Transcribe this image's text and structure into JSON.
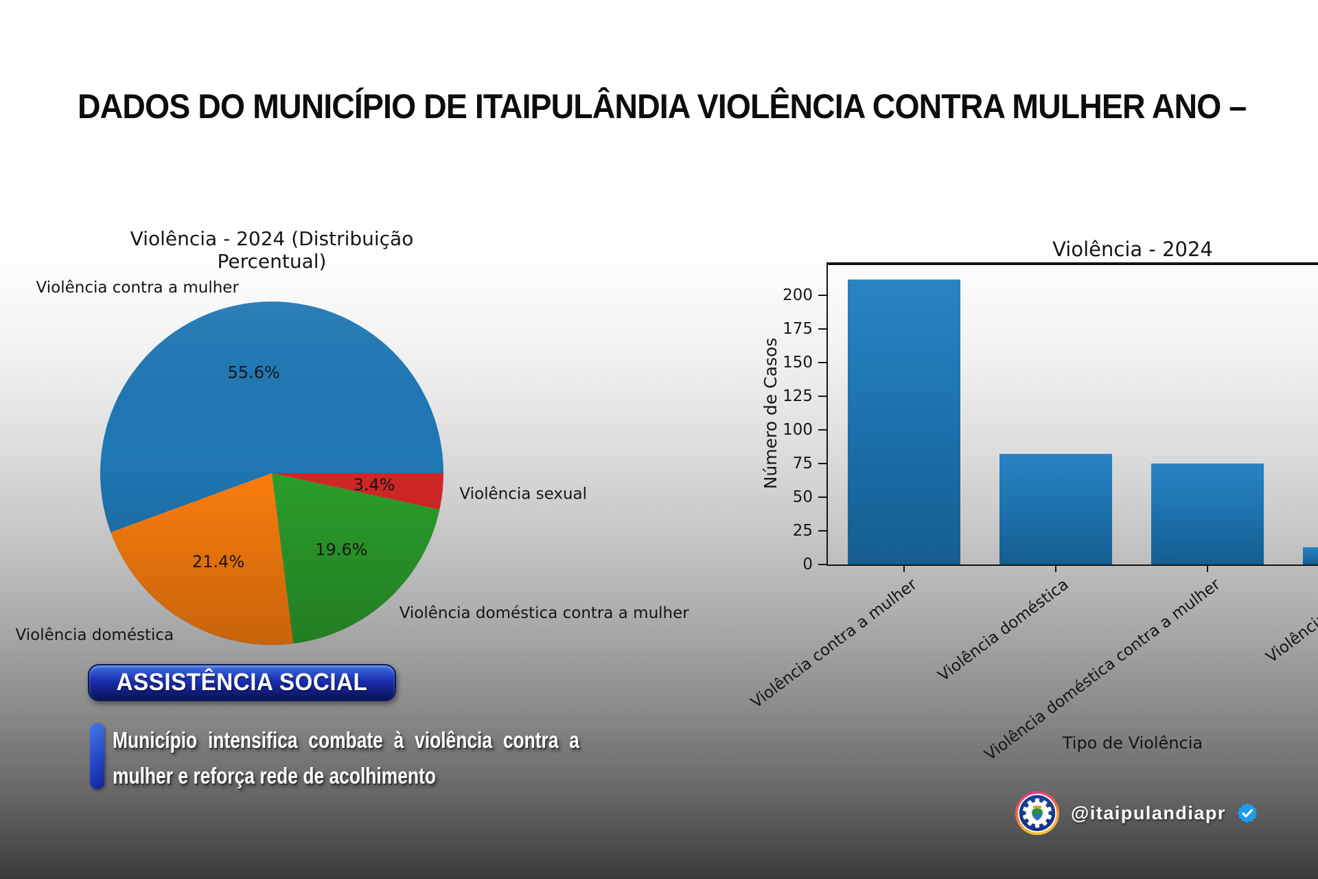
{
  "header": {
    "title": "DADOS DO MUNICÍPIO DE ITAIPULÂNDIA VIOLÊNCIA CONTRA MULHER ANO –"
  },
  "badge": {
    "label": "ASSISTÊNCIA SOCIAL"
  },
  "headline": {
    "line1": "Município intensifica combate à violência contra a",
    "line2": "mulher e reforça rede de acolhimento"
  },
  "social": {
    "handle": "@itaipulandiapr",
    "logo_icon": "itaipulandia-municipal-crest-logo",
    "verified_icon": "verified-check-badge"
  },
  "colors": {
    "verified_blue": "#1d9bf0",
    "badge_blue": "#1b2fae",
    "chart_text": "#161616"
  },
  "chart_data": [
    {
      "type": "pie",
      "title": "Violência - 2024 (Distribuição Percentual)",
      "labels": [
        "Violência contra a mulher",
        "Violência doméstica",
        "Violência doméstica contra a mulher",
        "Violência sexual"
      ],
      "values_percent": [
        55.6,
        21.4,
        19.6,
        3.4
      ],
      "colors": [
        "#1f77b4",
        "#ff7f0e",
        "#2ca02c",
        "#d62728"
      ],
      "start_angle": 0,
      "direction": "counterclockwise",
      "pct_label_suffix": "%",
      "legend_position": "none"
    },
    {
      "type": "bar",
      "title": "Violência - 2024",
      "categories": [
        "Violência contra a mulher",
        "Violência doméstica",
        "Violência doméstica contra a mulher",
        "Violência sexual"
      ],
      "values": [
        212,
        82,
        75,
        13
      ],
      "xlabel": "Tipo de Violência",
      "ylabel": "Número de Casos",
      "yticks": [
        0,
        25,
        50,
        75,
        100,
        125,
        150,
        175,
        200
      ],
      "ylim": [
        0,
        223
      ],
      "bar_color": "#1f77b4",
      "grid": false,
      "x_tick_rotation_deg": 37
    }
  ]
}
